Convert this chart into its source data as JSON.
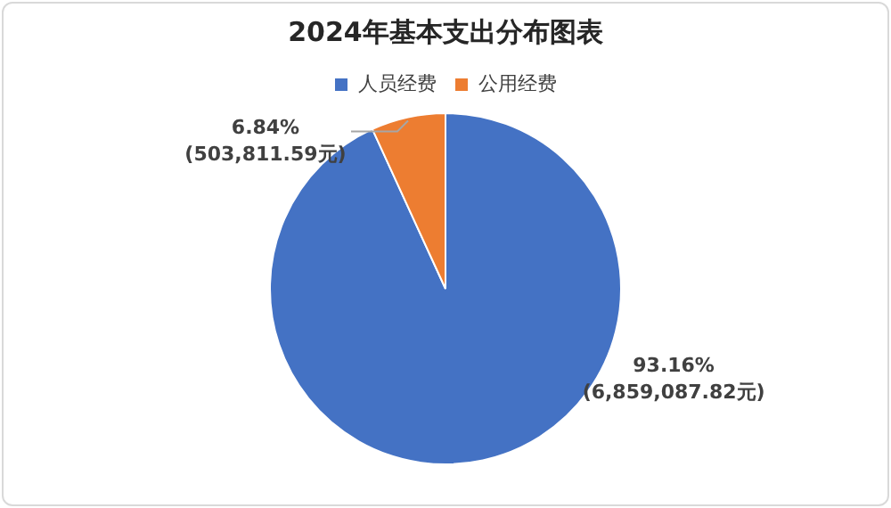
{
  "chart_data": {
    "type": "pie",
    "title": "2024年基本支出分布图表",
    "categories": [
      "人员经费",
      "公用经费"
    ],
    "values": [
      6859087.82,
      503811.59
    ],
    "colors": [
      "#4472c4",
      "#ed7d31"
    ],
    "value_labels": [
      "93.16%\n(6,859,087.82元)",
      "6.84%\n(503,811.59元)"
    ],
    "legend": "top"
  }
}
